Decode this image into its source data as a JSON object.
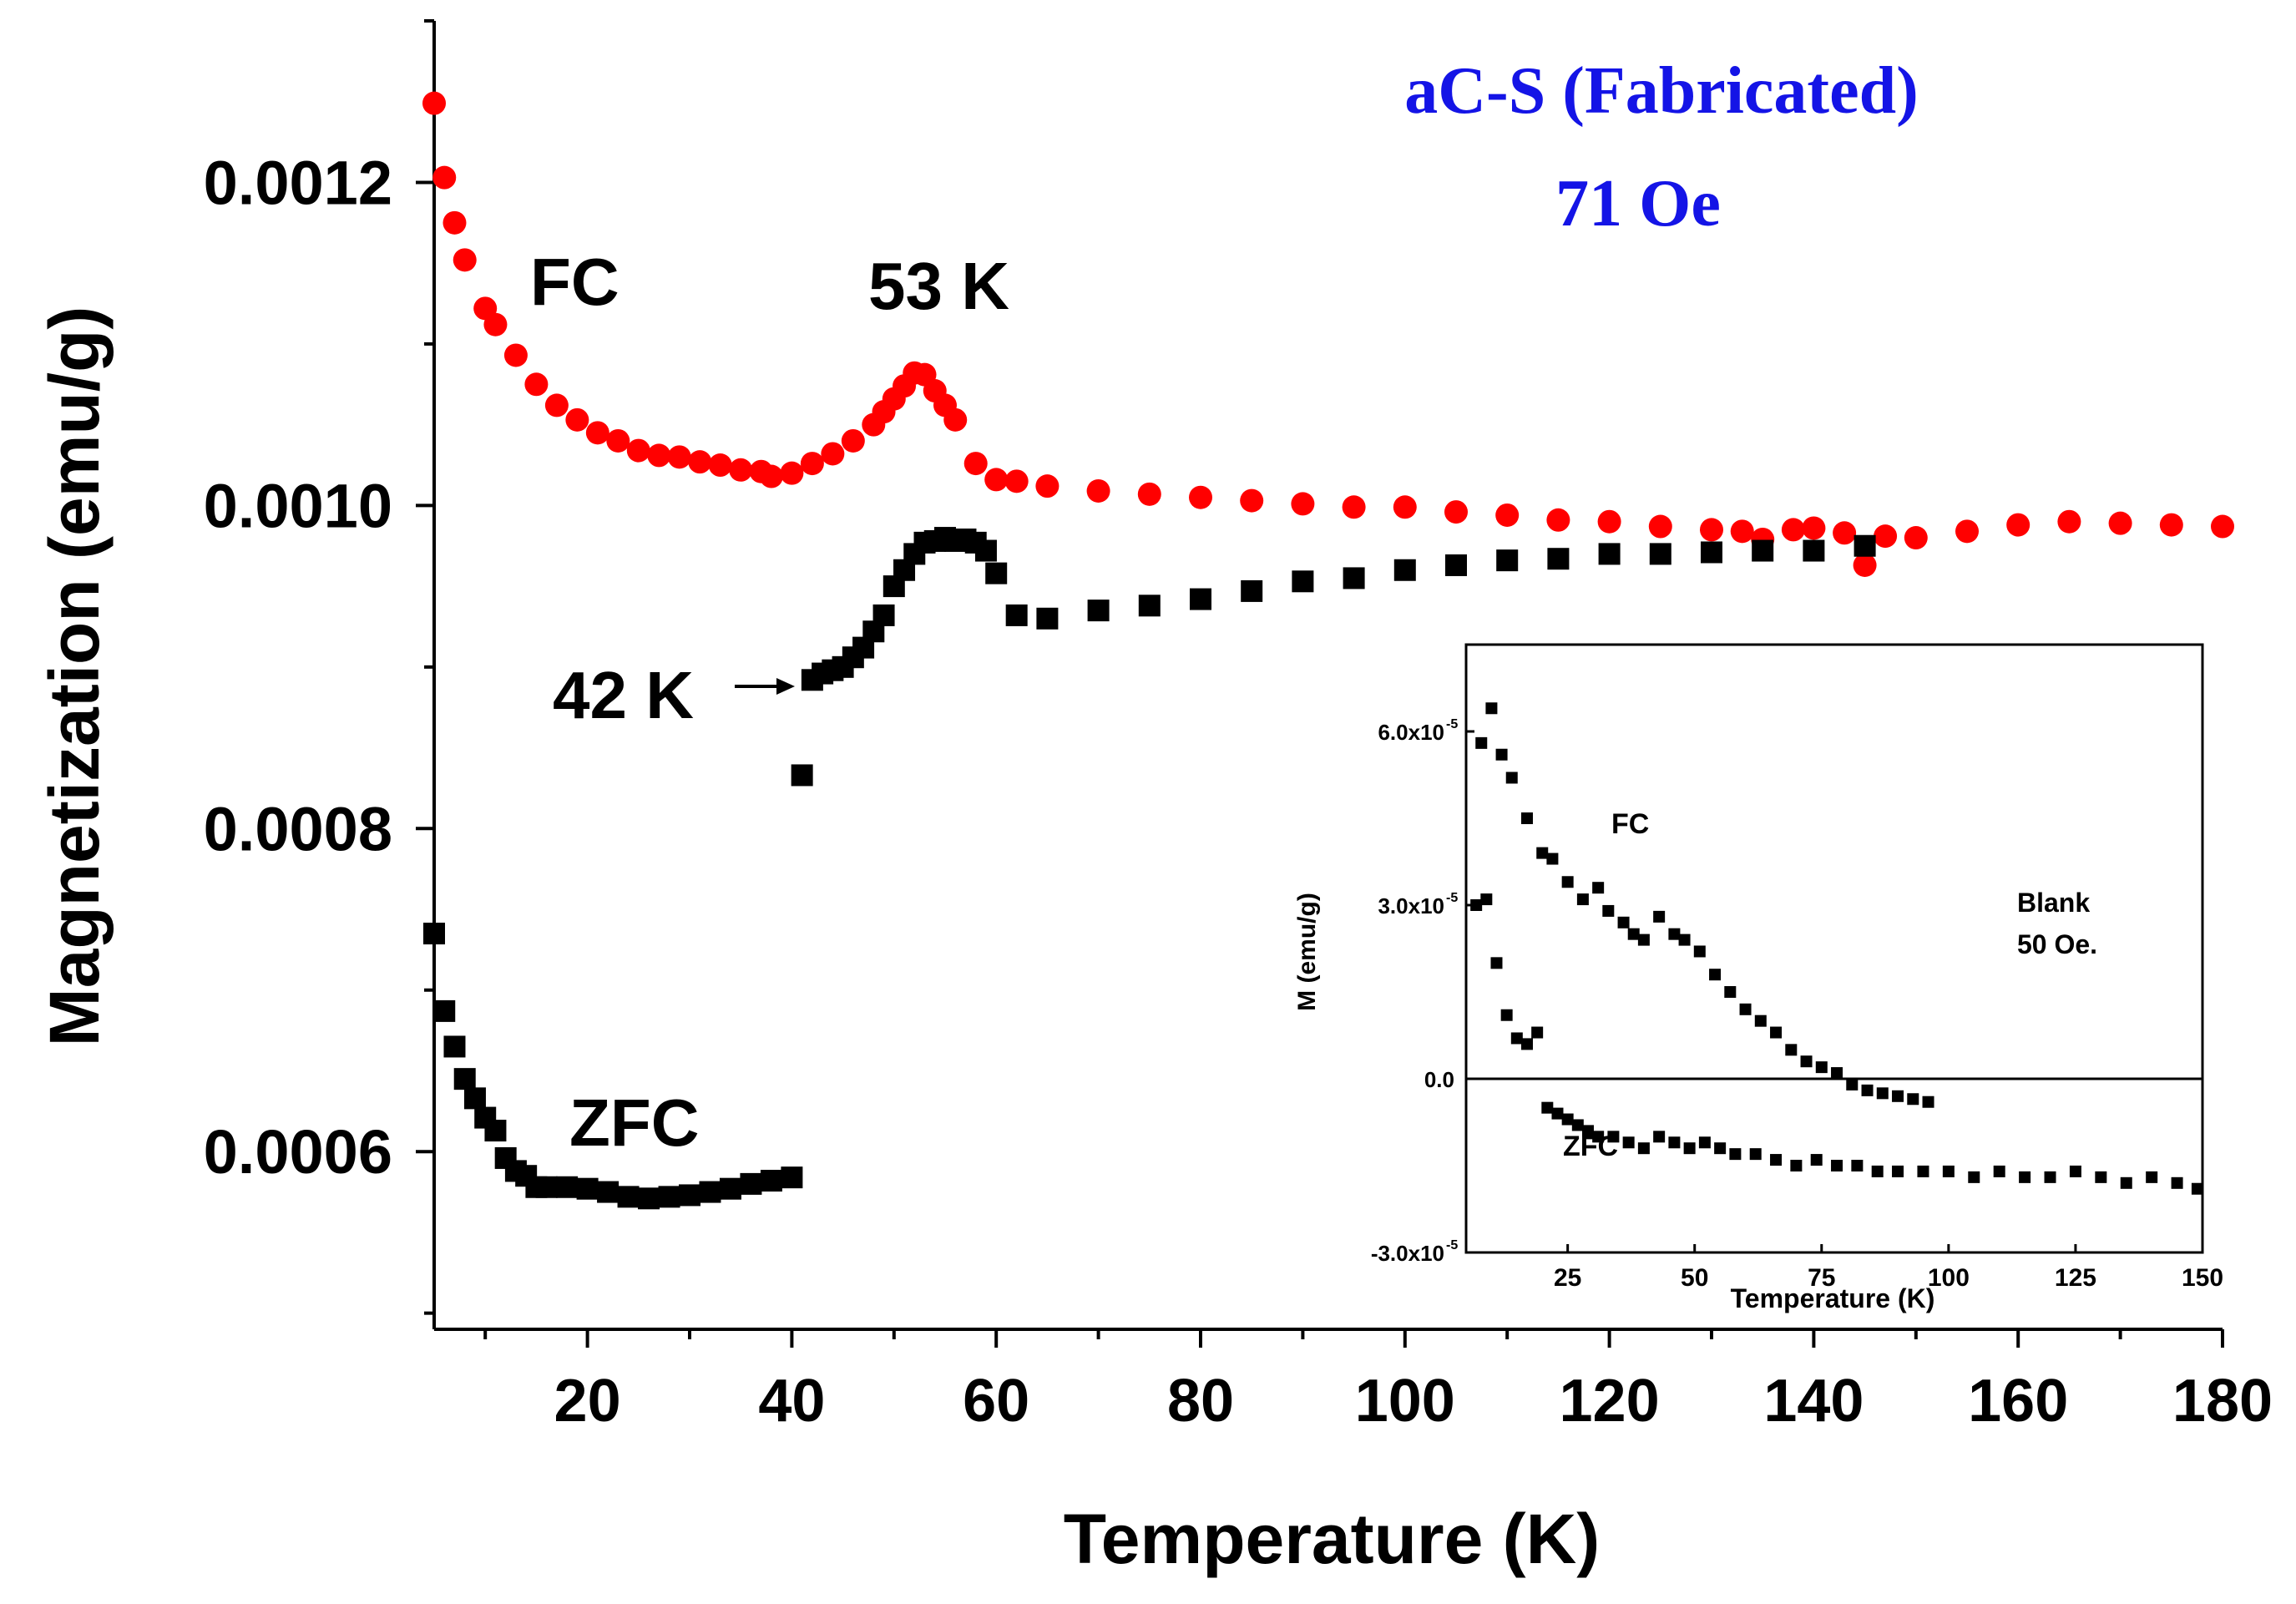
{
  "colors": {
    "fc": "#ff0000",
    "zfc": "#000000",
    "title": "#1414e6",
    "axis": "#000000"
  },
  "chart_data": [
    {
      "type": "scatter",
      "title": "aC-S (Fabricated)",
      "subtitle": "71 Oe",
      "xlabel": "Temperature (K)",
      "ylabel": "Magnetization (emu/g)",
      "xlim": [
        5,
        180
      ],
      "ylim": [
        0.00049,
        0.0013
      ],
      "xticks": [
        20,
        40,
        60,
        80,
        100,
        120,
        140,
        160,
        180
      ],
      "xtick_labels": [
        "20",
        "40",
        "60",
        "80",
        "100",
        "120",
        "140",
        "160",
        "180"
      ],
      "yticks": [
        0.0006,
        0.0008,
        0.001,
        0.0012
      ],
      "ytick_labels": [
        "0.0006",
        "0.0008",
        "0.0010",
        "0.0012"
      ],
      "annotations": [
        "FC",
        "53 K",
        "42 K",
        "ZFC"
      ],
      "series": [
        {
          "name": "FC",
          "marker": "circle",
          "x": [
            5,
            6,
            7,
            8,
            10,
            11,
            13,
            15,
            17,
            19,
            21,
            23,
            25,
            27,
            29,
            31,
            33,
            35,
            37,
            38,
            40,
            42,
            44,
            46,
            48,
            49,
            50,
            51,
            52,
            53,
            54,
            55,
            56,
            58,
            60,
            62,
            65,
            70,
            75,
            80,
            85,
            90,
            95,
            100,
            105,
            110,
            115,
            120,
            125,
            130,
            133,
            135,
            138,
            140,
            143,
            145,
            147,
            150,
            155,
            160,
            165,
            170,
            175,
            180
          ],
          "y": [
            0.001249,
            0.001203,
            0.001175,
            0.001152,
            0.001122,
            0.001112,
            0.001093,
            0.001075,
            0.001062,
            0.001053,
            0.001045,
            0.00104,
            0.001034,
            0.001031,
            0.00103,
            0.001027,
            0.001025,
            0.001022,
            0.001021,
            0.001018,
            0.00102,
            0.001026,
            0.001032,
            0.00104,
            0.00105,
            0.001058,
            0.001066,
            0.001074,
            0.001082,
            0.001081,
            0.001071,
            0.001062,
            0.001053,
            0.001026,
            0.001016,
            0.001015,
            0.001012,
            0.001009,
            0.001007,
            0.001005,
            0.001003,
            0.001001,
            0.000999,
            0.000999,
            0.000996,
            0.000994,
            0.000991,
            0.00099,
            0.000987,
            0.000985,
            0.000984,
            0.000979,
            0.000985,
            0.000986,
            0.000983,
            0.000963,
            0.000981,
            0.00098,
            0.000984,
            0.000988,
            0.00099,
            0.000989,
            0.000988,
            0.000987
          ]
        },
        {
          "name": "ZFC",
          "marker": "square",
          "x": [
            5,
            6,
            7,
            8,
            9,
            10,
            11,
            12,
            13,
            14,
            15,
            16,
            18,
            20,
            22,
            24,
            26,
            28,
            30,
            32,
            34,
            36,
            38,
            40,
            41,
            42,
            43,
            44,
            45,
            46,
            47,
            48,
            49,
            50,
            51,
            52,
            53,
            54,
            55,
            56,
            57,
            58,
            59,
            60,
            62,
            65,
            70,
            75,
            80,
            85,
            90,
            95,
            100,
            105,
            110,
            115,
            120,
            125,
            130,
            135,
            140,
            145
          ],
          "y": [
            0.000735,
            0.000687,
            0.000665,
            0.000645,
            0.000633,
            0.000621,
            0.000613,
            0.000596,
            0.000588,
            0.000585,
            0.000578,
            0.000578,
            0.000578,
            0.000577,
            0.000575,
            0.000572,
            0.000571,
            0.000572,
            0.000573,
            0.000575,
            0.000577,
            0.00058,
            0.000582,
            0.000584,
            0.000833,
            0.000892,
            0.000896,
            0.000898,
            0.0009,
            0.000906,
            0.000912,
            0.000922,
            0.000932,
            0.00095,
            0.00096,
            0.00097,
            0.000977,
            0.000978,
            0.00098,
            0.000978,
            0.000979,
            0.000977,
            0.000972,
            0.000958,
            0.000932,
            0.00093,
            0.000935,
            0.000938,
            0.000942,
            0.000947,
            0.000953,
            0.000955,
            0.00096,
            0.000963,
            0.000966,
            0.000967,
            0.00097,
            0.00097,
            0.000971,
            0.000972,
            0.000972,
            0.000975
          ]
        }
      ]
    },
    {
      "type": "scatter",
      "title": "Blank",
      "subtitle": "50 Oe.",
      "xlabel": "Temperature (K)",
      "ylabel": "M (emu/g)",
      "xlim": [
        5,
        150
      ],
      "ylim": [
        -3e-05,
        7.5e-05
      ],
      "xticks": [
        25,
        50,
        75,
        100,
        125,
        150
      ],
      "xtick_labels": [
        "25",
        "50",
        "75",
        "100",
        "125",
        "150"
      ],
      "yticks": [
        -3e-05,
        0.0,
        3e-05,
        6e-05
      ],
      "ytick_labels": [
        "-3.0x10",
        "0.0",
        "3.0x10",
        "6.0x10"
      ],
      "ytick_exponents": [
        "-5",
        "",
        "-5",
        "-5"
      ],
      "zero_line": true,
      "annotations": [
        "FC",
        "ZFC"
      ],
      "series": [
        {
          "name": "FC",
          "x": [
            8,
            10,
            12,
            14,
            17,
            20,
            22,
            25,
            28,
            31,
            33,
            36,
            38,
            40,
            43,
            46,
            48,
            51,
            54,
            57,
            60,
            63,
            66,
            69,
            72,
            75,
            78,
            81,
            84,
            87,
            90,
            93,
            96
          ],
          "y": [
            5.8e-05,
            6.4e-05,
            5.6e-05,
            5.2e-05,
            4.5e-05,
            3.9e-05,
            3.8e-05,
            3.4e-05,
            3.1e-05,
            3.3e-05,
            2.9e-05,
            2.7e-05,
            2.5e-05,
            2.4e-05,
            2.8e-05,
            2.5e-05,
            2.4e-05,
            2.2e-05,
            1.8e-05,
            1.5e-05,
            1.2e-05,
            1e-05,
            8e-06,
            5e-06,
            3e-06,
            2e-06,
            1e-06,
            -1e-06,
            -2e-06,
            -2.5e-06,
            -3e-06,
            -3.5e-06,
            -4e-06
          ]
        },
        {
          "name": "ZFC",
          "x": [
            7,
            9,
            11,
            13,
            15,
            17,
            19,
            21,
            23,
            25,
            27,
            29,
            31,
            34,
            37,
            40,
            43,
            46,
            49,
            52,
            55,
            58,
            62,
            66,
            70,
            74,
            78,
            82,
            86,
            90,
            95,
            100,
            105,
            110,
            115,
            120,
            125,
            130,
            135,
            140,
            145,
            149
          ],
          "y": [
            3e-05,
            3.1e-05,
            2e-05,
            1.1e-05,
            7e-06,
            6e-06,
            8e-06,
            -5e-06,
            -6e-06,
            -7e-06,
            -8e-06,
            -9e-06,
            -1e-05,
            -1e-05,
            -1.1e-05,
            -1.2e-05,
            -1e-05,
            -1.1e-05,
            -1.2e-05,
            -1.1e-05,
            -1.2e-05,
            -1.3e-05,
            -1.3e-05,
            -1.4e-05,
            -1.5e-05,
            -1.4e-05,
            -1.5e-05,
            -1.5e-05,
            -1.6e-05,
            -1.6e-05,
            -1.6e-05,
            -1.6e-05,
            -1.7e-05,
            -1.6e-05,
            -1.7e-05,
            -1.7e-05,
            -1.6e-05,
            -1.7e-05,
            -1.8e-05,
            -1.7e-05,
            -1.8e-05,
            -1.9e-05
          ]
        }
      ]
    }
  ]
}
